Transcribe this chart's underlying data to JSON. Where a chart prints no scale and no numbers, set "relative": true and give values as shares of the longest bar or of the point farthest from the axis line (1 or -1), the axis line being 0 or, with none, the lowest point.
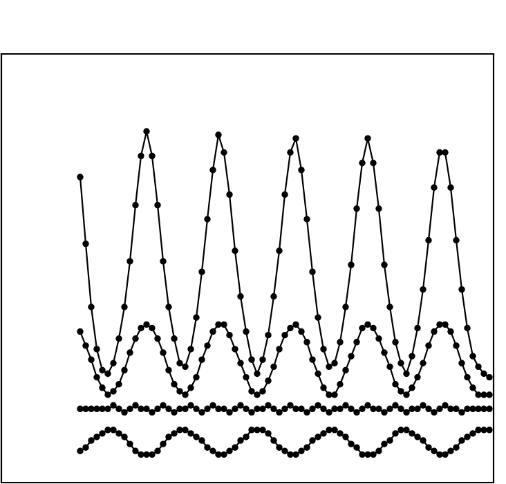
{
  "chart_data": {
    "type": "line",
    "relative": true,
    "marker": "circle",
    "line_style": "solid",
    "categories": [
      null,
      null,
      null,
      null,
      null,
      null,
      null,
      null,
      null,
      null,
      null,
      null,
      null,
      null,
      null,
      null,
      null,
      null,
      null,
      null,
      null,
      null,
      null,
      null,
      null,
      null,
      null,
      null,
      null,
      null,
      null,
      null,
      null,
      null,
      null,
      null,
      null,
      null,
      null,
      null,
      null,
      null,
      null,
      null,
      null,
      null,
      null,
      null,
      null,
      null,
      null,
      null,
      null,
      null,
      null,
      null,
      null,
      null,
      null,
      null,
      null,
      null,
      null,
      null,
      null,
      null,
      null,
      null,
      null,
      null,
      null,
      null,
      null,
      null,
      null
    ],
    "series": [
      {
        "color": "#000000",
        "values": [
          0.87,
          0.68,
          0.5,
          0.38,
          0.32,
          0.31,
          0.34,
          0.41,
          0.5,
          0.63,
          0.79,
          0.93,
          1.0,
          0.93,
          0.79,
          0.63,
          0.5,
          0.41,
          0.34,
          0.33,
          0.38,
          0.47,
          0.6,
          0.75,
          0.89,
          0.99,
          0.94,
          0.82,
          0.66,
          0.53,
          0.43,
          0.35,
          0.31,
          0.35,
          0.42,
          0.53,
          0.66,
          0.82,
          0.94,
          0.98,
          0.89,
          0.75,
          0.6,
          0.47,
          0.38,
          0.33,
          0.34,
          0.4,
          0.5,
          0.62,
          0.78,
          0.91,
          0.98,
          0.91,
          0.78,
          0.62,
          0.5,
          0.4,
          0.34,
          0.31,
          0.36,
          0.44,
          0.55,
          0.69,
          0.84,
          0.94,
          0.94,
          0.84,
          0.69,
          0.55,
          0.44,
          0.36,
          0.33,
          0.31,
          0.3
        ]
      },
      {
        "color": "#000000",
        "values": [
          0.43,
          0.39,
          0.35,
          0.3,
          0.27,
          0.25,
          0.26,
          0.28,
          0.32,
          0.37,
          0.41,
          0.44,
          0.45,
          0.44,
          0.41,
          0.37,
          0.32,
          0.28,
          0.26,
          0.25,
          0.27,
          0.3,
          0.35,
          0.39,
          0.43,
          0.45,
          0.45,
          0.42,
          0.38,
          0.34,
          0.3,
          0.26,
          0.25,
          0.26,
          0.29,
          0.33,
          0.38,
          0.42,
          0.44,
          0.45,
          0.43,
          0.4,
          0.35,
          0.31,
          0.27,
          0.25,
          0.25,
          0.28,
          0.32,
          0.36,
          0.4,
          0.44,
          0.45,
          0.44,
          0.41,
          0.37,
          0.33,
          0.28,
          0.26,
          0.25,
          0.27,
          0.3,
          0.34,
          0.39,
          0.43,
          0.45,
          0.45,
          0.43,
          0.39,
          0.34,
          0.3,
          0.27,
          0.25,
          0.25,
          0.25
        ]
      },
      {
        "color": "#000000",
        "values": [
          0.21,
          0.21,
          0.21,
          0.21,
          0.21,
          0.21,
          0.22,
          0.21,
          0.2,
          0.21,
          0.22,
          0.21,
          0.21,
          0.2,
          0.21,
          0.22,
          0.21,
          0.2,
          0.21,
          0.21,
          0.22,
          0.21,
          0.2,
          0.21,
          0.22,
          0.21,
          0.21,
          0.2,
          0.21,
          0.22,
          0.21,
          0.2,
          0.21,
          0.21,
          0.22,
          0.21,
          0.2,
          0.21,
          0.22,
          0.21,
          0.21,
          0.2,
          0.21,
          0.22,
          0.21,
          0.2,
          0.21,
          0.21,
          0.22,
          0.21,
          0.2,
          0.21,
          0.22,
          0.21,
          0.21,
          0.2,
          0.21,
          0.22,
          0.21,
          0.2,
          0.21,
          0.21,
          0.22,
          0.21,
          0.2,
          0.21,
          0.22,
          0.21,
          0.21,
          0.2,
          0.21,
          0.21,
          0.21,
          0.21,
          0.21
        ]
      },
      {
        "color": "#000000",
        "values": [
          0.09,
          0.1,
          0.12,
          0.13,
          0.14,
          0.15,
          0.15,
          0.14,
          0.13,
          0.11,
          0.09,
          0.08,
          0.08,
          0.08,
          0.09,
          0.11,
          0.13,
          0.14,
          0.15,
          0.15,
          0.14,
          0.13,
          0.12,
          0.1,
          0.09,
          0.08,
          0.08,
          0.09,
          0.1,
          0.12,
          0.13,
          0.15,
          0.15,
          0.15,
          0.14,
          0.12,
          0.1,
          0.09,
          0.08,
          0.08,
          0.09,
          0.1,
          0.12,
          0.13,
          0.14,
          0.15,
          0.15,
          0.14,
          0.13,
          0.11,
          0.1,
          0.08,
          0.08,
          0.08,
          0.09,
          0.11,
          0.12,
          0.14,
          0.15,
          0.15,
          0.14,
          0.13,
          0.12,
          0.1,
          0.09,
          0.08,
          0.08,
          0.09,
          0.1,
          0.12,
          0.13,
          0.14,
          0.15,
          0.15,
          0.15
        ]
      }
    ]
  }
}
